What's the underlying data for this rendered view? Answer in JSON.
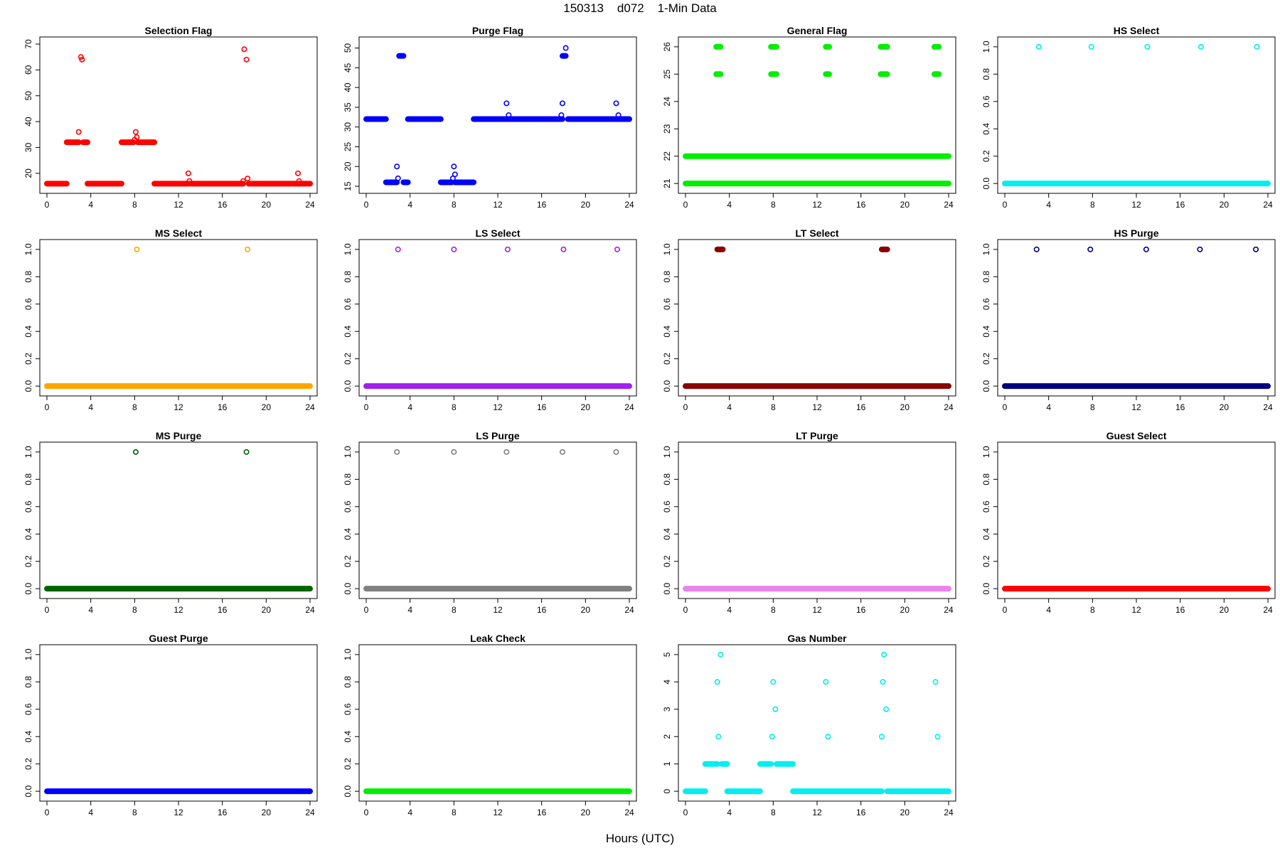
{
  "figure": {
    "title": "150313    d072    1-Min Data",
    "xlabel": "Hours (UTC)"
  },
  "chart_data": [
    {
      "type": "scatter",
      "title": "Selection Flag",
      "color": "#ff0000",
      "xlim": [
        0,
        24
      ],
      "xticks": [
        0,
        4,
        8,
        12,
        16,
        20,
        24
      ],
      "ylim": [
        15,
        70
      ],
      "yticks": [
        20,
        30,
        40,
        50,
        60,
        70
      ],
      "segments": [
        {
          "x0": 0.0,
          "x1": 1.8,
          "y": 16
        },
        {
          "x0": 1.8,
          "x1": 2.9,
          "y": 32
        },
        {
          "x0": 3.3,
          "x1": 3.7,
          "y": 32
        },
        {
          "x0": 3.7,
          "x1": 6.8,
          "y": 16
        },
        {
          "x0": 6.8,
          "x1": 7.9,
          "y": 32
        },
        {
          "x0": 8.3,
          "x1": 9.8,
          "y": 32
        },
        {
          "x0": 9.8,
          "x1": 17.9,
          "y": 16
        },
        {
          "x0": 18.4,
          "x1": 24.0,
          "y": 16
        }
      ],
      "points": [
        {
          "x": 2.9,
          "y": 36
        },
        {
          "x": 3.1,
          "y": 65
        },
        {
          "x": 3.2,
          "y": 64
        },
        {
          "x": 8.0,
          "y": 33
        },
        {
          "x": 8.1,
          "y": 36
        },
        {
          "x": 8.2,
          "y": 34
        },
        {
          "x": 12.9,
          "y": 20
        },
        {
          "x": 13.0,
          "y": 17
        },
        {
          "x": 17.9,
          "y": 17
        },
        {
          "x": 18.0,
          "y": 68
        },
        {
          "x": 18.2,
          "y": 64
        },
        {
          "x": 18.3,
          "y": 18
        },
        {
          "x": 22.9,
          "y": 20
        },
        {
          "x": 23.0,
          "y": 17
        }
      ]
    },
    {
      "type": "scatter",
      "title": "Purge Flag",
      "color": "#0000ff",
      "xlim": [
        0,
        24
      ],
      "xticks": [
        0,
        4,
        8,
        12,
        16,
        20,
        24
      ],
      "ylim": [
        15,
        51
      ],
      "yticks": [
        15,
        20,
        25,
        30,
        35,
        40,
        45,
        50
      ],
      "segments": [
        {
          "x0": 0.0,
          "x1": 1.8,
          "y": 32
        },
        {
          "x0": 1.8,
          "x1": 2.8,
          "y": 16
        },
        {
          "x0": 3.0,
          "x1": 3.4,
          "y": 48
        },
        {
          "x0": 3.4,
          "x1": 3.8,
          "y": 16
        },
        {
          "x0": 3.8,
          "x1": 6.8,
          "y": 32
        },
        {
          "x0": 6.8,
          "x1": 7.8,
          "y": 16
        },
        {
          "x0": 8.1,
          "x1": 9.8,
          "y": 16
        },
        {
          "x0": 9.8,
          "x1": 17.9,
          "y": 32
        },
        {
          "x0": 17.9,
          "x1": 18.2,
          "y": 48
        },
        {
          "x0": 18.4,
          "x1": 24.0,
          "y": 32
        }
      ],
      "points": [
        {
          "x": 2.8,
          "y": 20
        },
        {
          "x": 2.9,
          "y": 17
        },
        {
          "x": 7.9,
          "y": 17
        },
        {
          "x": 8.0,
          "y": 20
        },
        {
          "x": 8.1,
          "y": 18
        },
        {
          "x": 12.8,
          "y": 36
        },
        {
          "x": 13.0,
          "y": 33
        },
        {
          "x": 17.8,
          "y": 33
        },
        {
          "x": 17.9,
          "y": 36
        },
        {
          "x": 18.2,
          "y": 50
        },
        {
          "x": 22.8,
          "y": 36
        },
        {
          "x": 23.0,
          "y": 33
        }
      ]
    },
    {
      "type": "scatter",
      "title": "General Flag",
      "color": "#00ee00",
      "xlim": [
        0,
        24
      ],
      "xticks": [
        0,
        4,
        8,
        12,
        16,
        20,
        24
      ],
      "ylim": [
        20.9,
        26.1
      ],
      "yticks": [
        21,
        22,
        23,
        24,
        25,
        26
      ],
      "segments": [
        {
          "x0": 0.0,
          "x1": 24.0,
          "y": 21
        },
        {
          "x0": 0.0,
          "x1": 24.0,
          "y": 22
        },
        {
          "x0": 2.8,
          "x1": 3.2,
          "y": 26
        },
        {
          "x0": 2.8,
          "x1": 3.2,
          "y": 25
        },
        {
          "x0": 7.8,
          "x1": 8.3,
          "y": 26
        },
        {
          "x0": 7.8,
          "x1": 8.3,
          "y": 25
        },
        {
          "x0": 12.8,
          "x1": 13.1,
          "y": 26
        },
        {
          "x0": 12.8,
          "x1": 13.1,
          "y": 25
        },
        {
          "x0": 17.8,
          "x1": 18.4,
          "y": 26
        },
        {
          "x0": 17.8,
          "x1": 18.4,
          "y": 25
        },
        {
          "x0": 22.7,
          "x1": 23.1,
          "y": 26
        },
        {
          "x0": 22.7,
          "x1": 23.1,
          "y": 25
        }
      ],
      "points": []
    },
    {
      "type": "scatter",
      "title": "HS Select",
      "color": "#00eeee",
      "xlim": [
        0,
        24
      ],
      "xticks": [
        0,
        4,
        8,
        12,
        16,
        20,
        24
      ],
      "ylim": [
        -0.02,
        1.02
      ],
      "yticks": [
        0.0,
        0.2,
        0.4,
        0.6,
        0.8,
        1.0
      ],
      "segments": [
        {
          "x0": 0.0,
          "x1": 24.0,
          "y": 0
        }
      ],
      "points": [
        {
          "x": 3.1,
          "y": 1
        },
        {
          "x": 7.9,
          "y": 1
        },
        {
          "x": 13.0,
          "y": 1
        },
        {
          "x": 17.9,
          "y": 1
        },
        {
          "x": 23.0,
          "y": 1
        }
      ]
    },
    {
      "type": "scatter",
      "title": "MS Select",
      "color": "#ffa500",
      "xlim": [
        0,
        24
      ],
      "xticks": [
        0,
        4,
        8,
        12,
        16,
        20,
        24
      ],
      "ylim": [
        -0.02,
        1.02
      ],
      "yticks": [
        0.0,
        0.2,
        0.4,
        0.6,
        0.8,
        1.0
      ],
      "segments": [
        {
          "x0": 0.0,
          "x1": 24.0,
          "y": 0
        }
      ],
      "points": [
        {
          "x": 8.2,
          "y": 1
        },
        {
          "x": 18.3,
          "y": 1
        }
      ]
    },
    {
      "type": "scatter",
      "title": "LS Select",
      "color": "#a020f0",
      "xlim": [
        0,
        24
      ],
      "xticks": [
        0,
        4,
        8,
        12,
        16,
        20,
        24
      ],
      "ylim": [
        -0.02,
        1.02
      ],
      "yticks": [
        0.0,
        0.2,
        0.4,
        0.6,
        0.8,
        1.0
      ],
      "segments": [
        {
          "x0": 0.0,
          "x1": 24.0,
          "y": 0
        }
      ],
      "points": [
        {
          "x": 2.9,
          "y": 1
        },
        {
          "x": 8.0,
          "y": 1
        },
        {
          "x": 12.9,
          "y": 1
        },
        {
          "x": 18.0,
          "y": 1
        },
        {
          "x": 22.9,
          "y": 1
        }
      ]
    },
    {
      "type": "scatter",
      "title": "LT Select",
      "color": "#8b0000",
      "xlim": [
        0,
        24
      ],
      "xticks": [
        0,
        4,
        8,
        12,
        16,
        20,
        24
      ],
      "ylim": [
        -0.02,
        1.02
      ],
      "yticks": [
        0.0,
        0.2,
        0.4,
        0.6,
        0.8,
        1.0
      ],
      "segments": [
        {
          "x0": 0.0,
          "x1": 24.0,
          "y": 0
        },
        {
          "x0": 2.9,
          "x1": 3.4,
          "y": 1
        },
        {
          "x0": 17.9,
          "x1": 18.4,
          "y": 1
        }
      ],
      "points": []
    },
    {
      "type": "scatter",
      "title": "HS Purge",
      "color": "#000080",
      "xlim": [
        0,
        24
      ],
      "xticks": [
        0,
        4,
        8,
        12,
        16,
        20,
        24
      ],
      "ylim": [
        -0.02,
        1.02
      ],
      "yticks": [
        0.0,
        0.2,
        0.4,
        0.6,
        0.8,
        1.0
      ],
      "segments": [
        {
          "x0": 0.0,
          "x1": 24.0,
          "y": 0
        }
      ],
      "points": [
        {
          "x": 2.9,
          "y": 1
        },
        {
          "x": 7.8,
          "y": 1
        },
        {
          "x": 12.9,
          "y": 1
        },
        {
          "x": 17.8,
          "y": 1
        },
        {
          "x": 22.9,
          "y": 1
        }
      ]
    },
    {
      "type": "scatter",
      "title": "MS Purge",
      "color": "#006400",
      "xlim": [
        0,
        24
      ],
      "xticks": [
        0,
        4,
        8,
        12,
        16,
        20,
        24
      ],
      "ylim": [
        -0.02,
        1.02
      ],
      "yticks": [
        0.0,
        0.2,
        0.4,
        0.6,
        0.8,
        1.0
      ],
      "segments": [
        {
          "x0": 0.0,
          "x1": 24.0,
          "y": 0
        }
      ],
      "points": [
        {
          "x": 8.1,
          "y": 1
        },
        {
          "x": 18.2,
          "y": 1
        }
      ]
    },
    {
      "type": "scatter",
      "title": "LS Purge",
      "color": "#808080",
      "xlim": [
        0,
        24
      ],
      "xticks": [
        0,
        4,
        8,
        12,
        16,
        20,
        24
      ],
      "ylim": [
        -0.02,
        1.02
      ],
      "yticks": [
        0.0,
        0.2,
        0.4,
        0.6,
        0.8,
        1.0
      ],
      "segments": [
        {
          "x0": 0.0,
          "x1": 24.0,
          "y": 0
        }
      ],
      "points": [
        {
          "x": 2.8,
          "y": 1
        },
        {
          "x": 8.0,
          "y": 1
        },
        {
          "x": 12.8,
          "y": 1
        },
        {
          "x": 17.9,
          "y": 1
        },
        {
          "x": 22.8,
          "y": 1
        }
      ]
    },
    {
      "type": "scatter",
      "title": "LT Purge",
      "color": "#ee82ee",
      "xlim": [
        0,
        24
      ],
      "xticks": [
        0,
        4,
        8,
        12,
        16,
        20,
        24
      ],
      "ylim": [
        -0.02,
        1.02
      ],
      "yticks": [
        0.0,
        0.2,
        0.4,
        0.6,
        0.8,
        1.0
      ],
      "segments": [
        {
          "x0": 0.0,
          "x1": 24.0,
          "y": 0
        }
      ],
      "points": []
    },
    {
      "type": "scatter",
      "title": "Guest Select",
      "color": "#ff0000",
      "xlim": [
        0,
        24
      ],
      "xticks": [
        0,
        4,
        8,
        12,
        16,
        20,
        24
      ],
      "ylim": [
        -0.02,
        1.02
      ],
      "yticks": [
        0.0,
        0.2,
        0.4,
        0.6,
        0.8,
        1.0
      ],
      "segments": [
        {
          "x0": 0.0,
          "x1": 24.0,
          "y": 0
        }
      ],
      "points": []
    },
    {
      "type": "scatter",
      "title": "Guest Purge",
      "color": "#0000ff",
      "xlim": [
        0,
        24
      ],
      "xticks": [
        0,
        4,
        8,
        12,
        16,
        20,
        24
      ],
      "ylim": [
        -0.02,
        1.02
      ],
      "yticks": [
        0.0,
        0.2,
        0.4,
        0.6,
        0.8,
        1.0
      ],
      "segments": [
        {
          "x0": 0.0,
          "x1": 24.0,
          "y": 0
        }
      ],
      "points": []
    },
    {
      "type": "scatter",
      "title": "Leak Check",
      "color": "#00ee00",
      "xlim": [
        0,
        24
      ],
      "xticks": [
        0,
        4,
        8,
        12,
        16,
        20,
        24
      ],
      "ylim": [
        -0.02,
        1.02
      ],
      "yticks": [
        0.0,
        0.2,
        0.4,
        0.6,
        0.8,
        1.0
      ],
      "segments": [
        {
          "x0": 0.0,
          "x1": 24.0,
          "y": 0
        }
      ],
      "points": []
    },
    {
      "type": "scatter",
      "title": "Gas Number",
      "color": "#00eeee",
      "xlim": [
        0,
        24
      ],
      "xticks": [
        0,
        4,
        8,
        12,
        16,
        20,
        24
      ],
      "ylim": [
        -0.1,
        5.1
      ],
      "yticks": [
        0,
        1,
        2,
        3,
        4,
        5
      ],
      "segments": [
        {
          "x0": 0.0,
          "x1": 1.8,
          "y": 0
        },
        {
          "x0": 1.8,
          "x1": 2.9,
          "y": 1
        },
        {
          "x0": 3.3,
          "x1": 3.8,
          "y": 1
        },
        {
          "x0": 3.8,
          "x1": 6.8,
          "y": 0
        },
        {
          "x0": 6.8,
          "x1": 7.8,
          "y": 1
        },
        {
          "x0": 8.3,
          "x1": 9.8,
          "y": 1
        },
        {
          "x0": 9.8,
          "x1": 17.9,
          "y": 0
        },
        {
          "x0": 18.4,
          "x1": 24.0,
          "y": 0
        }
      ],
      "points": [
        {
          "x": 2.9,
          "y": 4
        },
        {
          "x": 3.0,
          "y": 2
        },
        {
          "x": 3.2,
          "y": 5
        },
        {
          "x": 7.9,
          "y": 2
        },
        {
          "x": 8.0,
          "y": 4
        },
        {
          "x": 8.2,
          "y": 3
        },
        {
          "x": 12.8,
          "y": 4
        },
        {
          "x": 13.0,
          "y": 2
        },
        {
          "x": 17.9,
          "y": 2
        },
        {
          "x": 18.0,
          "y": 4
        },
        {
          "x": 18.1,
          "y": 5
        },
        {
          "x": 18.3,
          "y": 3
        },
        {
          "x": 22.8,
          "y": 4
        },
        {
          "x": 23.0,
          "y": 2
        }
      ]
    }
  ]
}
